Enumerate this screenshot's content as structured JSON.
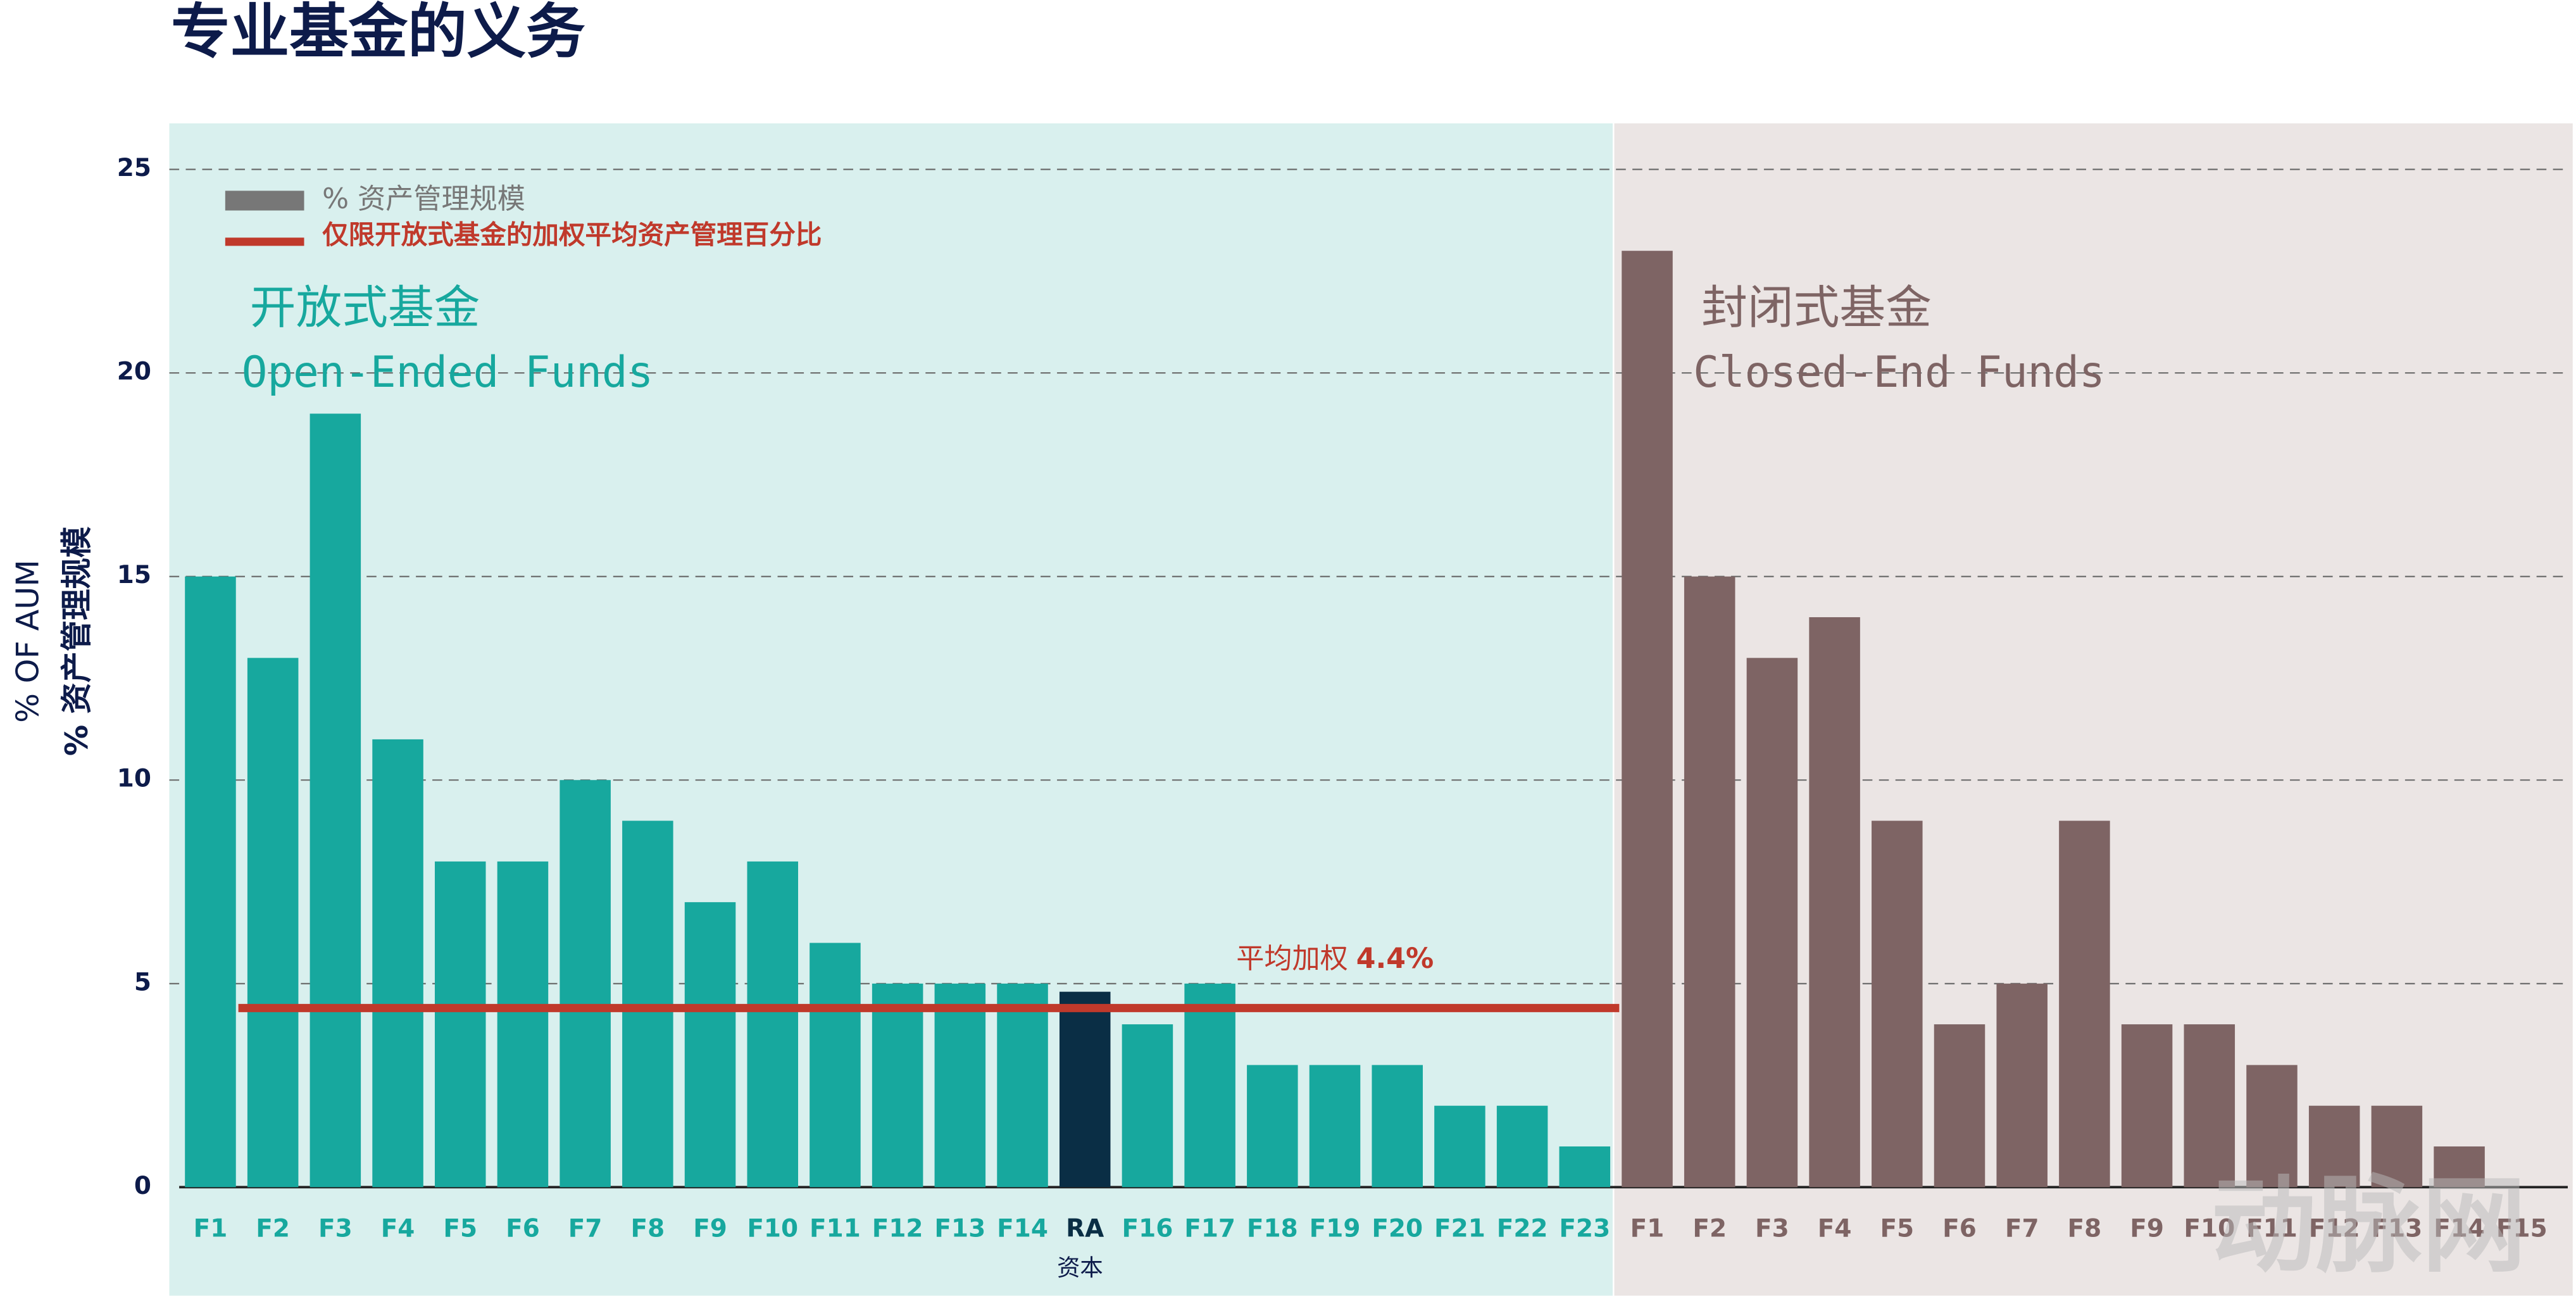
{
  "chart_data": {
    "type": "bar",
    "title": "专业基金的义务",
    "y_label": [
      "% OF AUM",
      "% 资产管理规模"
    ],
    "x_label": "资本",
    "ylim": [
      0,
      25
    ],
    "yticks": [
      0,
      5,
      10,
      15,
      20,
      25
    ],
    "grid": true,
    "legend": {
      "bar_name": "% 资产管理规模",
      "bar_color": "#777777",
      "position": "top-left"
    },
    "average": {
      "name": "仅限开放式基金的加权平均资产管理百分比",
      "label": "平均加权",
      "value": 4.4,
      "value_label": "4.4%",
      "color": "#c0392b"
    },
    "groups": [
      {
        "name": "开放式基金",
        "name_en": "Open-Ended Funds",
        "color": "#17a89e",
        "background": "#d9f0ee",
        "highlight": "RA",
        "highlight_color": "#0a2e45",
        "categories": [
          "F1",
          "F2",
          "F3",
          "F4",
          "F5",
          "F6",
          "F7",
          "F8",
          "F9",
          "F10",
          "F11",
          "F12",
          "F13",
          "F14",
          "RA",
          "F16",
          "F17",
          "F18",
          "F19",
          "F20",
          "F21",
          "F22",
          "F23"
        ],
        "values": [
          15,
          13,
          19,
          11,
          8,
          8,
          10,
          9,
          7,
          8,
          6,
          5,
          5,
          5,
          4.8,
          4,
          5,
          3,
          3,
          3,
          2,
          2,
          1
        ]
      },
      {
        "name": "封闭式基金",
        "name_en": "Closed-End Funds",
        "color": "#7e6464",
        "background": "#ebe5e4",
        "categories": [
          "F1",
          "F2",
          "F3",
          "F4",
          "F5",
          "F6",
          "F7",
          "F8",
          "F9",
          "F10",
          "F11",
          "F12",
          "F13",
          "F14",
          "F15"
        ],
        "values": [
          23,
          15,
          13,
          14,
          9,
          4,
          5,
          9,
          4,
          4,
          3,
          2,
          2,
          1,
          0
        ]
      }
    ],
    "watermark": "动脉网"
  }
}
